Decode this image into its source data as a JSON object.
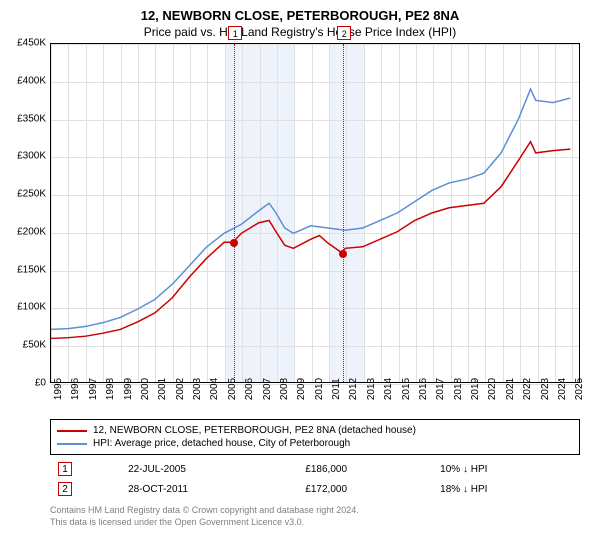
{
  "title": "12, NEWBORN CLOSE, PETERBOROUGH, PE2 8NA",
  "subtitle": "Price paid vs. HM Land Registry's House Price Index (HPI)",
  "chart": {
    "type": "line",
    "background_color": "#ffffff",
    "grid_color": "#e0e0e0",
    "shaded_color": "#eef2fa",
    "shaded_ranges": [
      [
        2005,
        2009
      ],
      [
        2011,
        2013
      ]
    ],
    "xlim": [
      1995,
      2025.5
    ],
    "ylim": [
      0,
      450000
    ],
    "ytick_step": 50000,
    "yticks": [
      0,
      50000,
      100000,
      150000,
      200000,
      250000,
      300000,
      350000,
      400000,
      450000
    ],
    "ytick_labels": [
      "£0",
      "£50K",
      "£100K",
      "£150K",
      "£200K",
      "£250K",
      "£300K",
      "£350K",
      "£400K",
      "£450K"
    ],
    "xticks": [
      1995,
      1996,
      1997,
      1998,
      1999,
      2000,
      2001,
      2002,
      2003,
      2004,
      2005,
      2006,
      2007,
      2008,
      2009,
      2010,
      2011,
      2012,
      2013,
      2014,
      2015,
      2016,
      2017,
      2018,
      2019,
      2020,
      2021,
      2022,
      2023,
      2024,
      2025
    ],
    "line_width": 1.5,
    "series": [
      {
        "name": "12, NEWBORN CLOSE, PETERBOROUGH, PE2 8NA (detached house)",
        "color": "#cc0000",
        "points": [
          [
            1995,
            58000
          ],
          [
            1996,
            59000
          ],
          [
            1997,
            61000
          ],
          [
            1998,
            65000
          ],
          [
            1999,
            70000
          ],
          [
            2000,
            80000
          ],
          [
            2001,
            92000
          ],
          [
            2002,
            112000
          ],
          [
            2003,
            140000
          ],
          [
            2004,
            165000
          ],
          [
            2005,
            186000
          ],
          [
            2005.5,
            186000
          ],
          [
            2006,
            198000
          ],
          [
            2007,
            212000
          ],
          [
            2007.6,
            215000
          ],
          [
            2008,
            200000
          ],
          [
            2008.5,
            182000
          ],
          [
            2009,
            178000
          ],
          [
            2010,
            190000
          ],
          [
            2010.5,
            195000
          ],
          [
            2011,
            185000
          ],
          [
            2011.8,
            172000
          ],
          [
            2012,
            178000
          ],
          [
            2013,
            180000
          ],
          [
            2014,
            190000
          ],
          [
            2015,
            200000
          ],
          [
            2016,
            215000
          ],
          [
            2017,
            225000
          ],
          [
            2018,
            232000
          ],
          [
            2019,
            235000
          ],
          [
            2020,
            238000
          ],
          [
            2021,
            260000
          ],
          [
            2022,
            295000
          ],
          [
            2022.7,
            320000
          ],
          [
            2023,
            305000
          ],
          [
            2024,
            308000
          ],
          [
            2025,
            310000
          ]
        ]
      },
      {
        "name": "HPI: Average price, detached house, City of Peterborough",
        "color": "#5b8fd6",
        "points": [
          [
            1995,
            70000
          ],
          [
            1996,
            71000
          ],
          [
            1997,
            74000
          ],
          [
            1998,
            79000
          ],
          [
            1999,
            86000
          ],
          [
            2000,
            97000
          ],
          [
            2001,
            110000
          ],
          [
            2002,
            130000
          ],
          [
            2003,
            155000
          ],
          [
            2004,
            180000
          ],
          [
            2005,
            198000
          ],
          [
            2006,
            210000
          ],
          [
            2007,
            228000
          ],
          [
            2007.6,
            238000
          ],
          [
            2008,
            225000
          ],
          [
            2008.5,
            205000
          ],
          [
            2009,
            198000
          ],
          [
            2010,
            208000
          ],
          [
            2011,
            205000
          ],
          [
            2012,
            202000
          ],
          [
            2013,
            205000
          ],
          [
            2014,
            215000
          ],
          [
            2015,
            225000
          ],
          [
            2016,
            240000
          ],
          [
            2017,
            255000
          ],
          [
            2018,
            265000
          ],
          [
            2019,
            270000
          ],
          [
            2020,
            278000
          ],
          [
            2021,
            305000
          ],
          [
            2022,
            350000
          ],
          [
            2022.7,
            390000
          ],
          [
            2023,
            375000
          ],
          [
            2024,
            372000
          ],
          [
            2025,
            378000
          ]
        ]
      }
    ],
    "vmarkers": [
      {
        "label": "1",
        "x": 2005.55,
        "marker_y": 186000
      },
      {
        "label": "2",
        "x": 2011.82,
        "marker_y": 172000
      }
    ]
  },
  "legend": {
    "rows": [
      {
        "color": "#cc0000",
        "label": "12, NEWBORN CLOSE, PETERBOROUGH, PE2 8NA (detached house)"
      },
      {
        "color": "#5b8fd6",
        "label": "HPI: Average price, detached house, City of Peterborough"
      }
    ]
  },
  "sales": [
    {
      "idx": "1",
      "date": "22-JUL-2005",
      "price": "£186,000",
      "diff": "10% ↓ HPI"
    },
    {
      "idx": "2",
      "date": "28-OCT-2011",
      "price": "£172,000",
      "diff": "18% ↓ HPI"
    }
  ],
  "footnote_line1": "Contains HM Land Registry data © Crown copyright and database right 2024.",
  "footnote_line2": "This data is licensed under the Open Government Licence v3.0.",
  "style": {
    "title_fontsize": 13,
    "subtitle_fontsize": 12,
    "axis_fontsize": 10,
    "legend_fontsize": 10,
    "footnote_fontsize": 9,
    "footnote_color": "#808080",
    "marker_border_color": "#cc0000"
  }
}
